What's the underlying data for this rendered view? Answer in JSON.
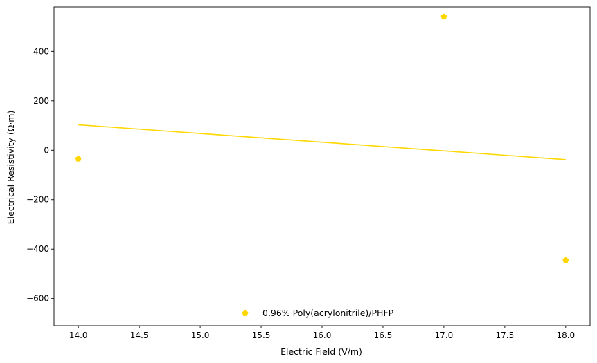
{
  "chart_data": {
    "type": "scatter",
    "title": "",
    "xlabel": "Electric Field (V/m)",
    "ylabel": "Electrical Resistivity (Ω·m)",
    "xlim": [
      13.8,
      18.2
    ],
    "ylim": [
      -710,
      580
    ],
    "x_ticks": [
      14.0,
      14.5,
      15.0,
      15.5,
      16.0,
      16.5,
      17.0,
      17.5,
      18.0
    ],
    "x_tick_labels": [
      "14.0",
      "14.5",
      "15.0",
      "15.5",
      "16.0",
      "16.5",
      "17.0",
      "17.5",
      "18.0"
    ],
    "y_ticks": [
      -600,
      -400,
      -200,
      0,
      200,
      400
    ],
    "y_tick_labels": [
      "−600",
      "−400",
      "−200",
      "0",
      "200",
      "400"
    ],
    "grid": false,
    "legend_position": "lower center",
    "series": [
      {
        "name": "0.96% Poly(acrylonitrile)/PHFP",
        "color": "#FFD700",
        "marker": "pentagon",
        "x": [
          14.0,
          17.0,
          18.0
        ],
        "y": [
          -35,
          540,
          -445
        ]
      }
    ],
    "trend_line": {
      "color": "#FFD700",
      "x": [
        14.0,
        18.0
      ],
      "y": [
        103,
        -38
      ]
    }
  }
}
